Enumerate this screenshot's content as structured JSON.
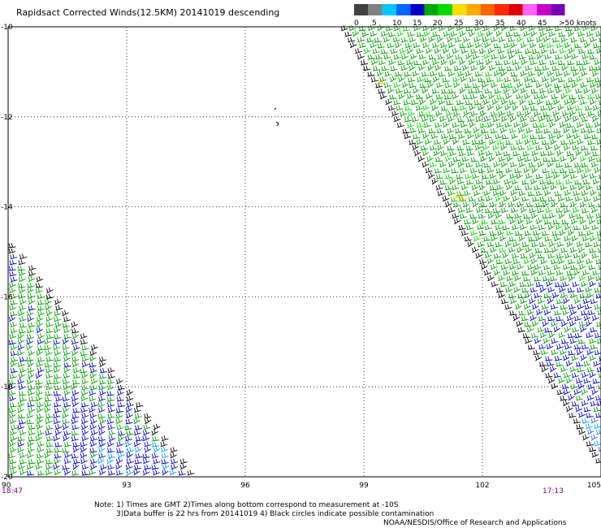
{
  "title": "Rapidsact Corrected Winds(12.5KM) 20141019 descending",
  "colorbar": {
    "segments": [
      "#404040",
      "#808080",
      "#00c8ff",
      "#0064ff",
      "#0000c8",
      "#00aa00",
      "#00dc00",
      "#ffdc00",
      "#ffaa00",
      "#ff6400",
      "#ff2800",
      "#dc0000",
      "#ff64ff",
      "#c800c8",
      "#7800b4"
    ],
    "labels": [
      "0",
      "5",
      "10",
      "15",
      "20",
      "25",
      "30",
      "35",
      "40",
      "45",
      ">50 knots"
    ]
  },
  "map": {
    "lat_labels": [
      "-10",
      "-12",
      "-14",
      "-16",
      "-18",
      "-20"
    ],
    "lon_labels": [
      "90",
      "93",
      "96",
      "99",
      "102",
      "105"
    ],
    "lat_range": [
      -20,
      -10
    ],
    "lon_range": [
      90,
      105
    ],
    "grid": true
  },
  "times": {
    "left": "18:47",
    "right": "17:13"
  },
  "notes": {
    "line1": "Note: 1) Times are GMT 2)Times along bottom correspond to measurement at -10S",
    "line2": "3)Data buffer is 22 hrs from 20141019 4) Black circles indicate possible contamination",
    "credit": "NOAA/NESDIS/Office of Research and Applications"
  },
  "swaths": [
    {
      "name": "east-swath",
      "dominant_speed_knots": "15-20",
      "edge_color": "#000000"
    },
    {
      "name": "southwest-swath",
      "dominant_speed_knots": "10-20",
      "edge_color": "#000000"
    }
  ],
  "colors": {
    "text_purple": "#800080",
    "grid": "#000000"
  }
}
